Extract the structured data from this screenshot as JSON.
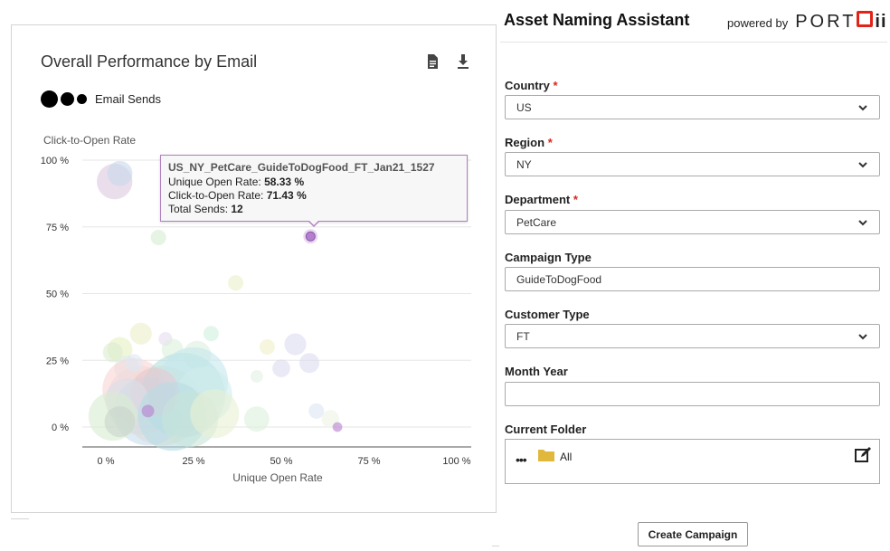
{
  "chart_card": {
    "title": "Overall Performance by Email",
    "icons": [
      "document-icon",
      "download-icon"
    ],
    "legend_label": "Email Sends",
    "tooltip": {
      "name": "US_NY_PetCare_GuideToDogFood_FT_Jan21_1527",
      "open_rate_label": "Unique Open Rate: ",
      "open_rate_value": "58.33 %",
      "cto_label": "Click-to-Open Rate: ",
      "cto_value": "71.43 %",
      "sends_label": "Total Sends: ",
      "sends_value": "12"
    }
  },
  "chart_data": {
    "type": "scatter",
    "ylabel": "Click-to-Open Rate",
    "xlabel": "Unique Open Rate",
    "x_ticks": [
      "0 %",
      "25 %",
      "50 %",
      "75 %",
      "100 %"
    ],
    "y_ticks": [
      "0 %",
      "25 %",
      "50 %",
      "75 %",
      "100 %"
    ],
    "xlim": [
      0,
      100
    ],
    "ylim": [
      0,
      100
    ],
    "grid": "horizontal",
    "highlight": {
      "x": 58.33,
      "y": 71.43,
      "size": 12,
      "color": "#b57fcf"
    },
    "points": [
      {
        "x": 2.5,
        "y": 92,
        "size": 80,
        "color": "#dcc8e0"
      },
      {
        "x": 4,
        "y": 95,
        "size": 40,
        "color": "#c8d8ec"
      },
      {
        "x": 15,
        "y": 71,
        "size": 15,
        "color": "#d4ecd0"
      },
      {
        "x": 37,
        "y": 54,
        "size": 15,
        "color": "#eaf0c8"
      },
      {
        "x": 4,
        "y": 29,
        "size": 40,
        "color": "#e6f0c0"
      },
      {
        "x": 2,
        "y": 28,
        "size": 25,
        "color": "#dcecd0"
      },
      {
        "x": 10,
        "y": 35,
        "size": 30,
        "color": "#ecefc8"
      },
      {
        "x": 17,
        "y": 33,
        "size": 12,
        "color": "#e6dcf0"
      },
      {
        "x": 19,
        "y": 29,
        "size": 30,
        "color": "#dcf0dc"
      },
      {
        "x": 30,
        "y": 35,
        "size": 15,
        "color": "#d0f0e0"
      },
      {
        "x": 26,
        "y": 27,
        "size": 50,
        "color": "#dcf0e0"
      },
      {
        "x": 46,
        "y": 30,
        "size": 15,
        "color": "#f0f0c8"
      },
      {
        "x": 54,
        "y": 31,
        "size": 30,
        "color": "#dcdcf0"
      },
      {
        "x": 50,
        "y": 22,
        "size": 20,
        "color": "#dcdcf0"
      },
      {
        "x": 58,
        "y": 24,
        "size": 25,
        "color": "#dcdcf0"
      },
      {
        "x": 6,
        "y": 22,
        "size": 40,
        "color": "#dcecf0"
      },
      {
        "x": 8,
        "y": 14,
        "size": 250,
        "color": "#f8d4d4"
      },
      {
        "x": 10,
        "y": 10,
        "size": 300,
        "color": "#f0d8dc"
      },
      {
        "x": 16,
        "y": 8,
        "size": 400,
        "color": "#f4dcc0"
      },
      {
        "x": 12,
        "y": 6,
        "size": 300,
        "color": "#c8dcec"
      },
      {
        "x": 22,
        "y": 12,
        "size": 450,
        "color": "#b4e0e0"
      },
      {
        "x": 25,
        "y": 17,
        "size": 300,
        "color": "#c4e8ec"
      },
      {
        "x": 28,
        "y": 12,
        "size": 200,
        "color": "#d0ecec"
      },
      {
        "x": 14,
        "y": 13,
        "size": 150,
        "color": "#e8c8d4"
      },
      {
        "x": 6,
        "y": 10,
        "size": 120,
        "color": "#d8e0e8"
      },
      {
        "x": 2,
        "y": 4,
        "size": 150,
        "color": "#d8ecd0"
      },
      {
        "x": 4,
        "y": 2,
        "size": 60,
        "color": "#c8d4cc"
      },
      {
        "x": 19,
        "y": 4,
        "size": 300,
        "color": "#b8dce4"
      },
      {
        "x": 24,
        "y": 3,
        "size": 200,
        "color": "#c8e4d8"
      },
      {
        "x": 31,
        "y": 5,
        "size": 150,
        "color": "#e8f0d4"
      },
      {
        "x": 12,
        "y": 6,
        "size": 10,
        "color": "#b57fcf"
      },
      {
        "x": 43,
        "y": 3,
        "size": 40,
        "color": "#dcf0dc"
      },
      {
        "x": 60,
        "y": 6,
        "size": 15,
        "color": "#dce4f4"
      },
      {
        "x": 64,
        "y": 3,
        "size": 20,
        "color": "#ecf4e4"
      },
      {
        "x": 66,
        "y": 0,
        "size": 6,
        "color": "#b57fcf"
      },
      {
        "x": 43,
        "y": 19,
        "size": 10,
        "color": "#e4f0e4"
      },
      {
        "x": 8,
        "y": 24,
        "size": 20,
        "color": "#e0e8f4"
      }
    ]
  },
  "form": {
    "title": "Asset Naming Assistant",
    "powered_by": "powered by",
    "brand": "PORT",
    "brand_suffix": "ii",
    "required_mark": "*",
    "country_label": "Country",
    "country_value": "US",
    "region_label": "Region",
    "region_value": "NY",
    "department_label": "Department",
    "department_value": "PetCare",
    "campaign_type_label": "Campaign Type",
    "campaign_type_value": "GuideToDogFood",
    "customer_type_label": "Customer Type",
    "customer_type_value": "FT",
    "month_year_label": "Month Year",
    "month_year_value": "",
    "current_folder_label": "Current Folder",
    "folder_more": "•••",
    "folder_name": "All",
    "create_button": "Create Campaign"
  }
}
